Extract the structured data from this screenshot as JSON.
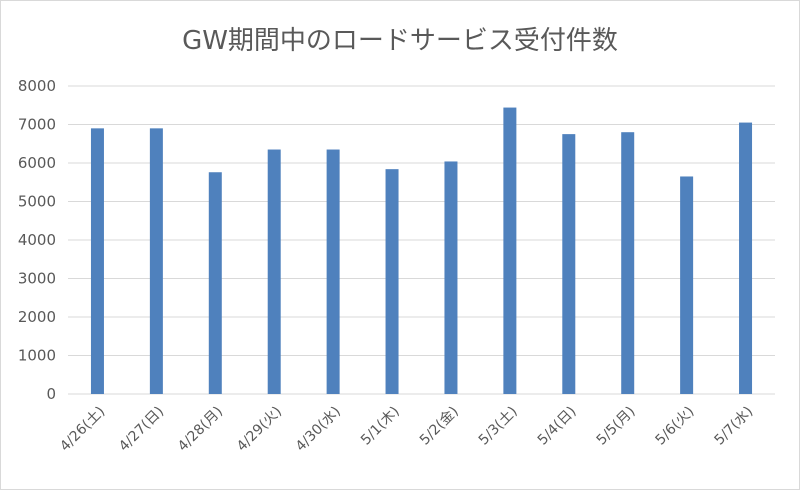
{
  "chart_data": {
    "type": "bar",
    "title": "GW期間中のロードサービス受付件数",
    "xlabel": "",
    "ylabel": "",
    "ylim": [
      0,
      8000
    ],
    "yticks": [
      0,
      1000,
      2000,
      3000,
      4000,
      5000,
      6000,
      7000,
      8000
    ],
    "categories": [
      "4/26(土)",
      "4/27(日)",
      "4/28(月)",
      "4/29(火)",
      "4/30(水)",
      "5/1(木)",
      "5/2(金)",
      "5/3(土)",
      "5/4(日)",
      "5/5(月)",
      "5/6(火)",
      "5/7(水)"
    ],
    "values": [
      6900,
      6900,
      5760,
      6350,
      6350,
      5840,
      6040,
      7440,
      6750,
      6800,
      5650,
      7050
    ],
    "grid": true,
    "legend": "none",
    "bar_color": "#4f81bd",
    "grid_color": "#d9d9d9"
  }
}
